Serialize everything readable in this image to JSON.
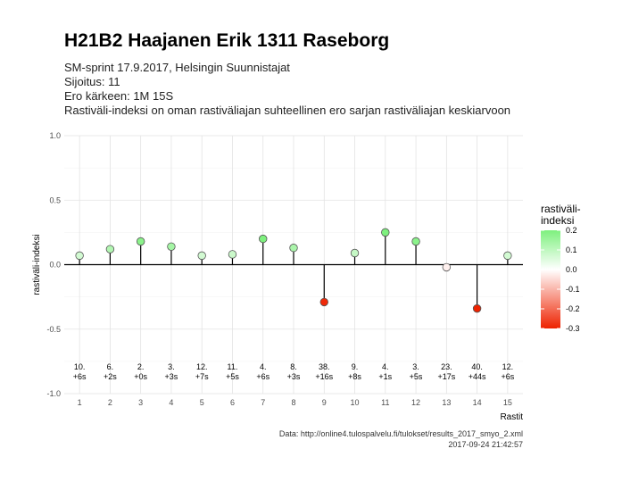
{
  "header": {
    "title": "H21B2 Haajanen Erik 1311 Raseborg",
    "line1": "SM-sprint 17.9.2017, Helsingin Suunnistajat",
    "line2": "Sijoitus: 11",
    "line3": "Ero kärkeen: 1M 15S",
    "line4": "Rastiväli-indeksi on oman rastiväliajan suhteellinen ero sarjan rastiväliajan keskiarvoon"
  },
  "footer": {
    "source": "Data: http://online4.tulospalvelu.fi/tulokset/results_2017_smyo_2.xml",
    "timestamp": "2017-09-24 21:42:57"
  },
  "colors": {
    "positive": "#7ef07e",
    "neutral": "#ffffff",
    "negative": "#ee2200"
  },
  "chart_data": {
    "type": "scatter",
    "xlabel": "Rastit",
    "ylabel": "rastiväli-indeksi",
    "xlim": [
      0.5,
      15.5
    ],
    "ylim": [
      -1.0,
      1.0
    ],
    "y_ticks": [
      -1.0,
      -0.5,
      0.0,
      0.5,
      1.0
    ],
    "y_tick_labels": [
      "-1.0",
      "-0.5",
      "0.0",
      "0.5",
      "1.0"
    ],
    "x_tick_labels": [
      "1",
      "2",
      "3",
      "4",
      "5",
      "6",
      "7",
      "8",
      "9",
      "10",
      "11",
      "12",
      "13",
      "14",
      "15"
    ],
    "grid": true,
    "x": [
      1,
      2,
      3,
      4,
      5,
      6,
      7,
      8,
      9,
      10,
      11,
      12,
      13,
      14,
      15
    ],
    "values": [
      0.07,
      0.12,
      0.18,
      0.14,
      0.07,
      0.08,
      0.2,
      0.13,
      -0.29,
      0.09,
      0.25,
      0.18,
      -0.02,
      -0.34,
      0.07
    ],
    "leg_rank": [
      "10.",
      "6.",
      "2.",
      "3.",
      "12.",
      "11.",
      "4.",
      "8.",
      "38.",
      "9.",
      "4.",
      "3.",
      "23.",
      "40.",
      "12."
    ],
    "leg_diff": [
      "+6s",
      "+2s",
      "+0s",
      "+3s",
      "+7s",
      "+5s",
      "+6s",
      "+3s",
      "+16s",
      "+8s",
      "+1s",
      "+5s",
      "+17s",
      "+44s",
      "+6s"
    ],
    "legend": {
      "title_line1": "rastiväli-",
      "title_line2": "indeksi",
      "breaks": [
        0.2,
        0.1,
        0.0,
        -0.1,
        -0.2,
        -0.3
      ],
      "break_labels": [
        "0.2",
        "0.1",
        "0.0",
        "-0.1",
        "-0.2",
        "-0.3"
      ],
      "range": [
        -0.3,
        0.2
      ],
      "placement": "right"
    }
  }
}
